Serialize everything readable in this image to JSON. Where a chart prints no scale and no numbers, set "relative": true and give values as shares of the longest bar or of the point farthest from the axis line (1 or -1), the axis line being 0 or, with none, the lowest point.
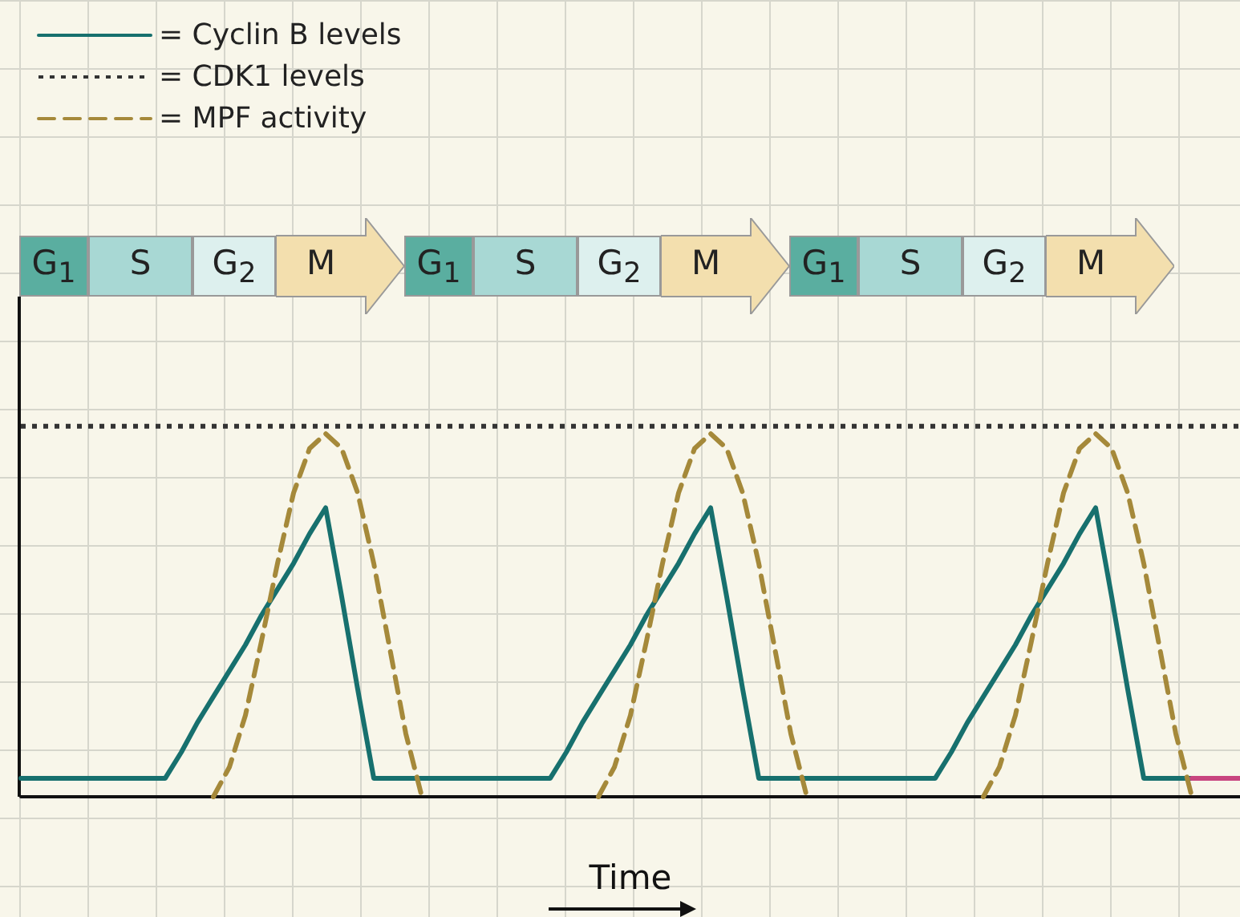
{
  "chart_data": {
    "type": "line",
    "relative": true,
    "xlabel": "Time",
    "legend": "top left",
    "tick_labels": false,
    "annotations": [
      "G$_{1}$",
      "S",
      "G$_{2}$",
      "M",
      "G$_{1}$",
      "S",
      "G$_{2}$",
      "M",
      "G$_{1}$",
      "S",
      "G$_{2}$",
      "M"
    ],
    "categories": [
      null,
      null,
      null,
      null,
      null,
      null,
      null,
      null,
      null,
      null,
      null,
      null,
      null,
      null,
      null,
      null,
      null,
      null,
      null,
      null,
      null,
      null,
      null,
      null,
      null,
      null,
      null,
      null,
      null,
      null,
      null,
      null,
      null,
      null,
      null,
      null,
      null,
      null,
      null,
      null,
      null,
      null,
      null,
      null,
      null,
      null,
      null,
      null,
      null,
      null,
      null,
      null,
      null,
      null,
      null,
      null,
      null,
      null,
      null,
      null,
      null,
      null,
      null,
      null,
      null,
      null,
      null,
      null,
      null,
      null,
      null,
      null,
      null,
      null,
      null,
      null,
      null
    ],
    "series": [
      {
        "name": "= Cyclin B levels",
        "color": "#17706e",
        "line_style": "solid",
        "values": [
          0.05,
          0.05,
          0.05,
          0.05,
          0.05,
          0.05,
          0.05,
          0.05,
          0.05,
          0.05,
          0.12,
          0.2,
          0.27,
          0.34,
          0.41,
          0.49,
          0.56,
          0.63,
          0.71,
          0.78,
          0.54,
          0.29,
          0.05,
          0.05,
          0.05,
          0.05,
          0.05,
          0.05,
          0.05,
          0.05,
          0.05,
          0.05,
          0.05,
          0.05,
          0.12,
          0.2,
          0.27,
          0.34,
          0.41,
          0.49,
          0.56,
          0.63,
          0.71,
          0.78,
          0.54,
          0.29,
          0.05,
          0.05,
          0.05,
          0.05,
          0.05,
          0.05,
          0.05,
          0.05,
          0.05,
          0.05,
          0.05,
          0.05,
          0.12,
          0.2,
          0.27,
          0.34,
          0.41,
          0.49,
          0.56,
          0.63,
          0.71,
          0.78,
          0.54,
          0.29,
          0.05,
          0.05,
          0.05,
          0.05,
          null,
          null,
          null
        ]
      },
      {
        "name": "= CDK1 levels",
        "color": "#333333",
        "line_style": "dotted",
        "values": [
          1,
          1,
          1,
          1,
          1,
          1,
          1,
          1,
          1,
          1,
          1,
          1,
          1,
          1,
          1,
          1,
          1,
          1,
          1,
          1,
          1,
          1,
          1,
          1,
          1,
          1,
          1,
          1,
          1,
          1,
          1,
          1,
          1,
          1,
          1,
          1,
          1,
          1,
          1,
          1,
          1,
          1,
          1,
          1,
          1,
          1,
          1,
          1,
          1,
          1,
          1,
          1,
          1,
          1,
          1,
          1,
          1,
          1,
          1,
          1,
          1,
          1,
          1,
          1,
          1,
          1,
          1,
          1,
          1,
          1,
          1,
          1,
          1,
          1,
          1,
          1,
          1
        ]
      },
      {
        "name": "= MPF activity",
        "color": "#a5893a",
        "line_style": "dashed",
        "values": [
          null,
          null,
          null,
          null,
          null,
          null,
          null,
          null,
          null,
          null,
          null,
          null,
          0,
          0.08,
          0.22,
          0.42,
          0.63,
          0.82,
          0.94,
          0.98,
          0.94,
          0.82,
          0.63,
          0.4,
          0.17,
          0,
          null,
          null,
          null,
          null,
          null,
          null,
          null,
          null,
          null,
          null,
          0,
          0.08,
          0.22,
          0.42,
          0.63,
          0.82,
          0.94,
          0.98,
          0.94,
          0.82,
          0.63,
          0.4,
          0.17,
          0,
          null,
          null,
          null,
          null,
          null,
          null,
          null,
          null,
          null,
          null,
          0,
          0.08,
          0.22,
          0.42,
          0.63,
          0.82,
          0.94,
          0.98,
          0.94,
          0.82,
          0.63,
          0.4,
          0.17,
          0,
          null,
          null,
          null
        ]
      },
      {
        "color": "#c8457f",
        "line_style": "solid",
        "values": [
          null,
          null,
          null,
          null,
          null,
          null,
          null,
          null,
          null,
          null,
          null,
          null,
          null,
          null,
          null,
          null,
          null,
          null,
          null,
          null,
          null,
          null,
          null,
          null,
          null,
          null,
          null,
          null,
          null,
          null,
          null,
          null,
          null,
          null,
          null,
          null,
          null,
          null,
          null,
          null,
          null,
          null,
          null,
          null,
          null,
          null,
          null,
          null,
          null,
          null,
          null,
          null,
          null,
          null,
          null,
          null,
          null,
          null,
          null,
          null,
          null,
          null,
          null,
          null,
          null,
          null,
          null,
          null,
          null,
          null,
          null,
          null,
          null,
          0.05,
          0.05,
          0.05,
          0.05
        ]
      }
    ]
  }
}
